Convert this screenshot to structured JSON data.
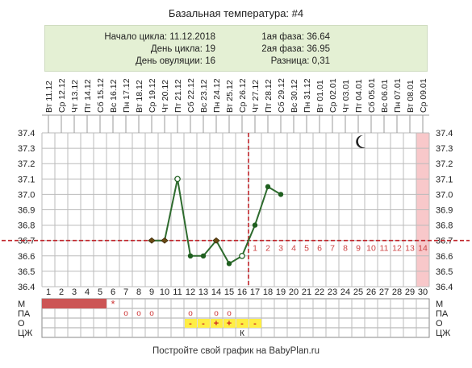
{
  "header": {
    "title": "Базальная температура: #4",
    "cycle_start": "Начало цикла: 11.12.2018",
    "cycle_day": "День цикла: 19",
    "ovulation_day": "День овуляции: 16",
    "phase1": "1ая фаза: 36.64",
    "phase2": "2ая фаза: 36.95",
    "difference": "Разница: 0,31"
  },
  "footer": {
    "text": "Постройте свой график на BabyPlan.ru"
  },
  "colors": {
    "line": "#2e6b2e",
    "point": "#1f5f1f",
    "coverline": "#c0242a",
    "period": "#cc5555",
    "mucus": "#ffee44",
    "highlight": "#f8c8ca",
    "info_bg": "#e4f0d4",
    "post_day_number": "#cc4444"
  },
  "icons": {
    "moon": "crescent-moon-icon"
  },
  "chart_data": {
    "type": "line",
    "dates": [
      "Вт 11.12",
      "Ср 12.12",
      "Чт 13.12",
      "Пт 14.12",
      "Сб 15.12",
      "Вс 16.12",
      "Пн 17.12",
      "Вт 18.12",
      "Ср 19.12",
      "Чт 20.12",
      "Пт 21.12",
      "Сб 22.12",
      "Вс 23.12",
      "Пн 24.12",
      "Вт 25.12",
      "Ср 26.12",
      "Чт 27.12",
      "Пт 28.12",
      "Сб 29.12",
      "Вс 30.12",
      "Пн 31.12",
      "Вт 01.01",
      "Ср 02.01",
      "Чт 03.01",
      "Пт 04.01",
      "Сб 05.01",
      "Вс 06.01",
      "Пн 07.01",
      "Вт 08.01",
      "Ср 09.01"
    ],
    "days": [
      "1",
      "2",
      "3",
      "4",
      "5",
      "6",
      "7",
      "8",
      "9",
      "10",
      "11",
      "12",
      "13",
      "14",
      "15",
      "16",
      "17",
      "18",
      "19",
      "20",
      "21",
      "22",
      "23",
      "24",
      "25",
      "26",
      "27",
      "28",
      "29",
      "30"
    ],
    "y_ticks": [
      "37.4",
      "37.3",
      "37.2",
      "37.1",
      "37.0",
      "36.9",
      "36.8",
      "36.7",
      "36.6",
      "36.5",
      "36.4"
    ],
    "ylim": [
      36.4,
      37.4
    ],
    "series": [
      {
        "points": [
          {
            "day": 9,
            "value": 36.7,
            "marker": "diamond"
          },
          {
            "day": 10,
            "value": 36.7,
            "marker": "diamond"
          },
          {
            "day": 11,
            "value": 37.1,
            "marker": "open"
          },
          {
            "day": 12,
            "value": 36.6,
            "marker": "dot"
          },
          {
            "day": 13,
            "value": 36.6,
            "marker": "dot"
          },
          {
            "day": 14,
            "value": 36.7,
            "marker": "diamond"
          },
          {
            "day": 15,
            "value": 36.55,
            "marker": "dot"
          },
          {
            "day": 16,
            "value": 36.6,
            "marker": "open"
          },
          {
            "day": 17,
            "value": 36.8,
            "marker": "dot"
          },
          {
            "day": 18,
            "value": 37.05,
            "marker": "dot"
          },
          {
            "day": 19,
            "value": 37.0,
            "marker": "dot"
          }
        ]
      }
    ],
    "coverline": 36.7,
    "ovulation_day": 16,
    "post_ovulation_labels": [
      "1",
      "2",
      "3",
      "4",
      "5",
      "6",
      "7",
      "8",
      "9",
      "10",
      "11",
      "12",
      "13",
      "14"
    ],
    "highlight_day": 30,
    "grid": true
  },
  "rows": {
    "labels": [
      "М",
      "ПА",
      "О",
      "ЦЖ"
    ],
    "m_period_days": [
      1,
      2,
      3,
      4,
      5
    ],
    "m_star": {
      "day": 6,
      "symbol": "*"
    },
    "pa_days": [
      7,
      8,
      9,
      12,
      14,
      15
    ],
    "pa_symbol": "о",
    "o_values": [
      {
        "day": 12,
        "symbol": "-"
      },
      {
        "day": 13,
        "symbol": "-"
      },
      {
        "day": 14,
        "symbol": "+"
      },
      {
        "day": 15,
        "symbol": "+"
      },
      {
        "day": 16,
        "symbol": "-"
      },
      {
        "day": 17,
        "symbol": "-"
      }
    ],
    "czh_values": [
      {
        "day": 16,
        "symbol": "К"
      }
    ]
  }
}
